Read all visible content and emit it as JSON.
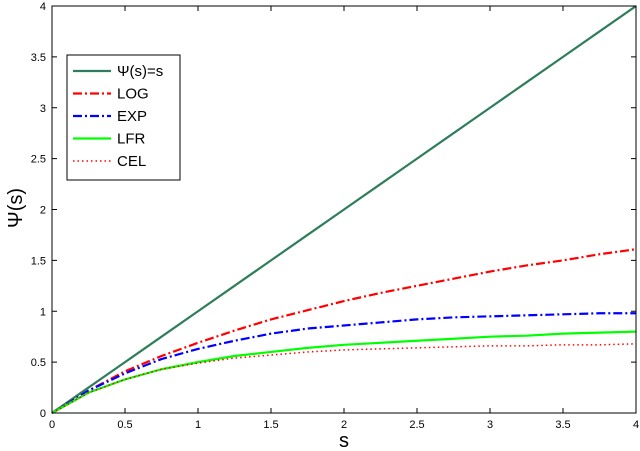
{
  "chart_data": {
    "type": "line",
    "title": "",
    "xlabel": "s",
    "ylabel": "Ψ(s)",
    "xlim": [
      0,
      4
    ],
    "ylim": [
      0,
      4
    ],
    "grid": false,
    "legend_position": "top-left",
    "x_ticks": [
      "0",
      "0.5",
      "1",
      "1.5",
      "2",
      "2.5",
      "3",
      "3.5",
      "4"
    ],
    "y_ticks": [
      "0",
      "0.5",
      "1",
      "1.5",
      "2",
      "2.5",
      "3",
      "3.5",
      "4"
    ],
    "x": [
      0,
      0.25,
      0.5,
      0.75,
      1,
      1.25,
      1.5,
      1.75,
      2,
      2.25,
      2.5,
      2.75,
      3,
      3.25,
      3.5,
      3.75,
      4
    ],
    "series": [
      {
        "name": "Ψ(s)=s",
        "color": "#2e7d5b",
        "dash": "solid",
        "values": [
          0,
          0.25,
          0.5,
          0.75,
          1,
          1.25,
          1.5,
          1.75,
          2,
          2.25,
          2.5,
          2.75,
          3,
          3.25,
          3.5,
          3.75,
          4
        ]
      },
      {
        "name": "LOG",
        "color": "#ff0000",
        "dash": "dashdot",
        "values": [
          0,
          0.22,
          0.41,
          0.56,
          0.69,
          0.81,
          0.92,
          1.01,
          1.1,
          1.18,
          1.25,
          1.32,
          1.39,
          1.45,
          1.5,
          1.56,
          1.61
        ]
      },
      {
        "name": "EXP",
        "color": "#0000ff",
        "dash": "dashdot",
        "values": [
          0,
          0.22,
          0.39,
          0.53,
          0.63,
          0.71,
          0.78,
          0.83,
          0.86,
          0.89,
          0.92,
          0.94,
          0.95,
          0.96,
          0.97,
          0.98,
          0.98
        ]
      },
      {
        "name": "LFR",
        "color": "#00ff00",
        "dash": "solid",
        "values": [
          0,
          0.2,
          0.33,
          0.43,
          0.5,
          0.56,
          0.6,
          0.64,
          0.67,
          0.69,
          0.71,
          0.73,
          0.75,
          0.76,
          0.78,
          0.79,
          0.8
        ]
      },
      {
        "name": "CEL",
        "color": "#ff0000",
        "dash": "dotted",
        "values": [
          0,
          0.2,
          0.33,
          0.43,
          0.49,
          0.54,
          0.57,
          0.6,
          0.62,
          0.63,
          0.64,
          0.65,
          0.66,
          0.66,
          0.67,
          0.67,
          0.68
        ]
      }
    ]
  }
}
